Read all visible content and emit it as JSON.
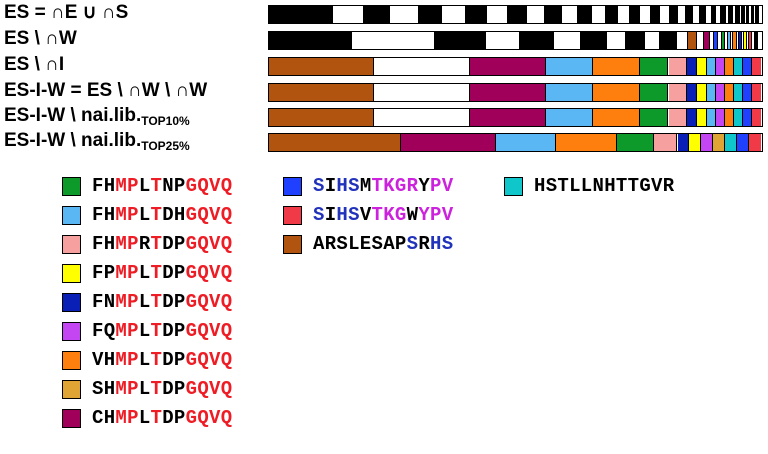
{
  "colors": {
    "black": "#000000",
    "white": "#ffffff",
    "seq_red": "#ee1c24",
    "seq_blue": "#2233bb",
    "seq_magenta": "#cc22dd",
    "green": "#0e9a2b",
    "light_blue": "#5ab7f3",
    "pink": "#f6a0a0",
    "yellow": "#ffff00",
    "navy": "#0a1fb5",
    "violet": "#c445f2",
    "orange": "#ff7f0e",
    "gold": "#e0a434",
    "maroon": "#a0005a",
    "blue": "#2040ff",
    "red": "#f03a48",
    "brown": "#b15410",
    "teal": "#0fc7cb"
  },
  "rows": [
    {
      "label": "ES = ∩E ∪ ∩S",
      "segments": [
        {
          "w": 55,
          "c": "black"
        },
        {
          "w": 26,
          "c": "white"
        },
        {
          "w": 22,
          "c": "black"
        },
        {
          "w": 25,
          "c": "white"
        },
        {
          "w": 20,
          "c": "black"
        },
        {
          "w": 20,
          "c": "white"
        },
        {
          "w": 18,
          "c": "black"
        },
        {
          "w": 18,
          "c": "white"
        },
        {
          "w": 16,
          "c": "black"
        },
        {
          "w": 16,
          "c": "white"
        },
        {
          "w": 14,
          "c": "black"
        },
        {
          "w": 14,
          "c": "white"
        },
        {
          "w": 12,
          "c": "black"
        },
        {
          "w": 12,
          "c": "white"
        },
        {
          "w": 10,
          "c": "black"
        },
        {
          "w": 10,
          "c": "white"
        },
        {
          "w": 9,
          "c": "black"
        },
        {
          "w": 9,
          "c": "white"
        },
        {
          "w": 8,
          "c": "black"
        },
        {
          "w": 8,
          "c": "white"
        },
        {
          "w": 7,
          "c": "black"
        },
        {
          "w": 7,
          "c": "white"
        },
        {
          "w": 6,
          "c": "black"
        },
        {
          "w": 6,
          "c": "white"
        },
        {
          "w": 5,
          "c": "black"
        },
        {
          "w": 5,
          "c": "white"
        },
        {
          "w": 4,
          "c": "black"
        },
        {
          "w": 4,
          "c": "white"
        },
        {
          "w": 4,
          "c": "black"
        },
        {
          "w": 3,
          "c": "white"
        },
        {
          "w": 3,
          "c": "black"
        },
        {
          "w": 3,
          "c": "white"
        },
        {
          "w": 3,
          "c": "black"
        },
        {
          "w": 2,
          "c": "white"
        },
        {
          "w": 2,
          "c": "black"
        },
        {
          "w": 2,
          "c": "white"
        },
        {
          "w": 2,
          "c": "black"
        },
        {
          "w": 2,
          "c": "white"
        },
        {
          "w": 2,
          "c": "black"
        },
        {
          "w": 2,
          "c": "white"
        },
        {
          "w": 2,
          "c": "black"
        },
        {
          "w": 2,
          "c": "white"
        }
      ]
    },
    {
      "label": "ES \\ ∩W",
      "segments": [
        {
          "w": 78,
          "c": "black"
        },
        {
          "w": 78,
          "c": "white"
        },
        {
          "w": 48,
          "c": "black"
        },
        {
          "w": 32,
          "c": "white"
        },
        {
          "w": 32,
          "c": "black"
        },
        {
          "w": 26,
          "c": "white"
        },
        {
          "w": 24,
          "c": "black"
        },
        {
          "w": 18,
          "c": "white"
        },
        {
          "w": 18,
          "c": "black"
        },
        {
          "w": 14,
          "c": "white"
        },
        {
          "w": 16,
          "c": "black"
        },
        {
          "w": 10,
          "c": "white"
        },
        {
          "w": 9,
          "c": "brown"
        },
        {
          "w": 6,
          "c": "white"
        },
        {
          "w": 6,
          "c": "maroon"
        },
        {
          "w": 4,
          "c": "white"
        },
        {
          "w": 4,
          "c": "blue"
        },
        {
          "w": 3,
          "c": "white"
        },
        {
          "w": 3,
          "c": "green"
        },
        {
          "w": 3,
          "c": "white"
        },
        {
          "w": 3,
          "c": "light_blue"
        },
        {
          "w": 2,
          "c": "white"
        },
        {
          "w": 3,
          "c": "orange"
        },
        {
          "w": 2,
          "c": "white"
        },
        {
          "w": 3,
          "c": "navy"
        },
        {
          "w": 2,
          "c": "white"
        },
        {
          "w": 3,
          "c": "yellow"
        },
        {
          "w": 2,
          "c": "white"
        },
        {
          "w": 3,
          "c": "red"
        },
        {
          "w": 2,
          "c": "white"
        },
        {
          "w": 3,
          "c": "black"
        },
        {
          "w": 3,
          "c": "white"
        }
      ]
    },
    {
      "label": "ES \\ ∩I",
      "segments": [
        {
          "w": 107,
          "c": "brown"
        },
        {
          "w": 97,
          "c": "white"
        },
        {
          "w": 77,
          "c": "maroon"
        },
        {
          "w": 48,
          "c": "light_blue"
        },
        {
          "w": 48,
          "c": "orange"
        },
        {
          "w": 29,
          "c": "green"
        },
        {
          "w": 19,
          "c": "pink"
        },
        {
          "w": 10,
          "c": "navy"
        },
        {
          "w": 10,
          "c": "yellow"
        },
        {
          "w": 9,
          "c": "light_blue"
        },
        {
          "w": 9,
          "c": "violet"
        },
        {
          "w": 10,
          "c": "orange"
        },
        {
          "w": 9,
          "c": "teal"
        },
        {
          "w": 9,
          "c": "blue"
        },
        {
          "w": 9,
          "c": "red"
        }
      ]
    },
    {
      "label": "ES-I-W = ES \\ ∩W \\ ∩W",
      "segments": [
        {
          "w": 107,
          "c": "brown"
        },
        {
          "w": 97,
          "c": "white"
        },
        {
          "w": 77,
          "c": "maroon"
        },
        {
          "w": 48,
          "c": "light_blue"
        },
        {
          "w": 48,
          "c": "orange"
        },
        {
          "w": 29,
          "c": "green"
        },
        {
          "w": 19,
          "c": "pink"
        },
        {
          "w": 10,
          "c": "navy"
        },
        {
          "w": 10,
          "c": "yellow"
        },
        {
          "w": 9,
          "c": "light_blue"
        },
        {
          "w": 9,
          "c": "violet"
        },
        {
          "w": 10,
          "c": "orange"
        },
        {
          "w": 9,
          "c": "teal"
        },
        {
          "w": 9,
          "c": "blue"
        },
        {
          "w": 9,
          "c": "red"
        }
      ]
    },
    {
      "label": "ES-I-W \\ nai.lib.",
      "label_sub": "TOP10%",
      "segments": [
        {
          "w": 107,
          "c": "brown"
        },
        {
          "w": 97,
          "c": "white"
        },
        {
          "w": 77,
          "c": "maroon"
        },
        {
          "w": 48,
          "c": "light_blue"
        },
        {
          "w": 48,
          "c": "orange"
        },
        {
          "w": 29,
          "c": "green"
        },
        {
          "w": 19,
          "c": "pink"
        },
        {
          "w": 10,
          "c": "navy"
        },
        {
          "w": 10,
          "c": "yellow"
        },
        {
          "w": 9,
          "c": "light_blue"
        },
        {
          "w": 9,
          "c": "violet"
        },
        {
          "w": 10,
          "c": "orange"
        },
        {
          "w": 9,
          "c": "teal"
        },
        {
          "w": 9,
          "c": "blue"
        },
        {
          "w": 9,
          "c": "red"
        }
      ]
    },
    {
      "label": "ES-I-W \\ nai.lib.",
      "label_sub": "TOP25%",
      "segments": [
        {
          "w": 133,
          "c": "brown"
        },
        {
          "w": 95,
          "c": "maroon"
        },
        {
          "w": 61,
          "c": "light_blue"
        },
        {
          "w": 61,
          "c": "orange"
        },
        {
          "w": 37,
          "c": "green"
        },
        {
          "w": 24,
          "c": "pink"
        },
        {
          "w": 12,
          "c": "navy"
        },
        {
          "w": 12,
          "c": "yellow"
        },
        {
          "w": 12,
          "c": "violet"
        },
        {
          "w": 12,
          "c": "gold"
        },
        {
          "w": 12,
          "c": "teal"
        },
        {
          "w": 12,
          "c": "blue"
        },
        {
          "w": 12,
          "c": "red"
        }
      ]
    }
  ],
  "legend": [
    {
      "color": "green",
      "seq": [
        [
          "FH",
          "black"
        ],
        [
          "MP",
          "red"
        ],
        [
          "L",
          "black"
        ],
        [
          "T",
          "red"
        ],
        [
          "NP",
          "black"
        ],
        [
          "GQVQ",
          "red"
        ]
      ]
    },
    {
      "color": "light_blue",
      "seq": [
        [
          "FH",
          "black"
        ],
        [
          "MP",
          "red"
        ],
        [
          "L",
          "black"
        ],
        [
          "T",
          "red"
        ],
        [
          "DH",
          "black"
        ],
        [
          "GQVQ",
          "red"
        ]
      ]
    },
    {
      "color": "pink",
      "seq": [
        [
          "FH",
          "black"
        ],
        [
          "MP",
          "red"
        ],
        [
          "R",
          "black"
        ],
        [
          "T",
          "red"
        ],
        [
          "DP",
          "black"
        ],
        [
          "GQVQ",
          "red"
        ]
      ]
    },
    {
      "color": "yellow",
      "seq": [
        [
          "FP",
          "black"
        ],
        [
          "MP",
          "red"
        ],
        [
          "L",
          "black"
        ],
        [
          "T",
          "red"
        ],
        [
          "DP",
          "black"
        ],
        [
          "GQVQ",
          "red"
        ]
      ]
    },
    {
      "color": "navy",
      "seq": [
        [
          "FN",
          "black"
        ],
        [
          "MP",
          "red"
        ],
        [
          "L",
          "black"
        ],
        [
          "T",
          "red"
        ],
        [
          "DP",
          "black"
        ],
        [
          "GQVQ",
          "red"
        ]
      ]
    },
    {
      "color": "violet",
      "seq": [
        [
          "FQ",
          "black"
        ],
        [
          "MP",
          "red"
        ],
        [
          "L",
          "black"
        ],
        [
          "T",
          "red"
        ],
        [
          "DP",
          "black"
        ],
        [
          "GQVQ",
          "red"
        ]
      ]
    },
    {
      "color": "orange",
      "seq": [
        [
          "VH",
          "black"
        ],
        [
          "MP",
          "red"
        ],
        [
          "L",
          "black"
        ],
        [
          "T",
          "red"
        ],
        [
          "DP",
          "black"
        ],
        [
          "GQVQ",
          "red"
        ]
      ]
    },
    {
      "color": "gold",
      "seq": [
        [
          "SH",
          "black"
        ],
        [
          "MP",
          "red"
        ],
        [
          "L",
          "black"
        ],
        [
          "T",
          "red"
        ],
        [
          "DP",
          "black"
        ],
        [
          "GQVQ",
          "red"
        ]
      ]
    },
    {
      "color": "maroon",
      "seq": [
        [
          "CH",
          "black"
        ],
        [
          "MP",
          "red"
        ],
        [
          "L",
          "black"
        ],
        [
          "T",
          "red"
        ],
        [
          "DP",
          "black"
        ],
        [
          "GQVQ",
          "red"
        ]
      ]
    },
    {
      "color": "blue",
      "seq": [
        [
          "S",
          "blue"
        ],
        [
          "I",
          "black"
        ],
        [
          "HS",
          "blue"
        ],
        [
          "M",
          "black"
        ],
        [
          "TKGR",
          "magenta"
        ],
        [
          "Y",
          "black"
        ],
        [
          "PV",
          "magenta"
        ]
      ]
    },
    {
      "color": "red",
      "seq": [
        [
          "S",
          "blue"
        ],
        [
          "I",
          "black"
        ],
        [
          "HS",
          "blue"
        ],
        [
          "V",
          "black"
        ],
        [
          "TKG",
          "magenta"
        ],
        [
          "W",
          "black"
        ],
        [
          "YPV",
          "magenta"
        ]
      ]
    },
    {
      "color": "brown",
      "seq": [
        [
          "ARSLESAP",
          "black"
        ],
        [
          "S",
          "blue"
        ],
        [
          "R",
          "black"
        ],
        [
          "HS",
          "blue"
        ]
      ]
    },
    {
      "color": "teal",
      "seq": [
        [
          "HSTLLNHTTGVR",
          "black"
        ]
      ]
    }
  ]
}
